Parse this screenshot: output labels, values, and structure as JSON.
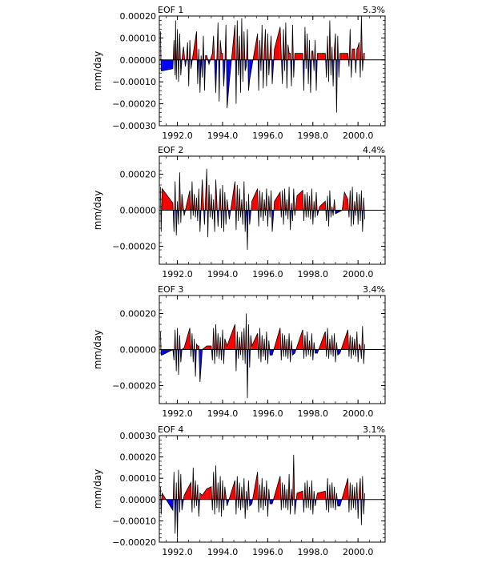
{
  "colors": {
    "positive": "#ff0000",
    "negative": "#0000ff",
    "axis": "#000000"
  },
  "chart_data": [
    {
      "type": "area",
      "title": "EOF 1",
      "variance_label": "5.3%",
      "ylabel": "mm/day",
      "xlim": [
        1991.2,
        2001.2
      ],
      "ylim": [
        -0.0003,
        0.0002
      ],
      "yticks": [
        -0.0003,
        -0.0002,
        -0.0001,
        0.0,
        0.0001,
        0.0002
      ],
      "ytick_labels": [
        "−0.00030",
        "−0.00020",
        "−0.00010",
        "0.00000",
        "0.00010",
        "0.00020"
      ],
      "xticks": [
        1992,
        1994,
        1996,
        1998,
        2000
      ],
      "xtick_labels": [
        "1992.0",
        "1994.0",
        "1996.0",
        "1998.0",
        "2000.0"
      ],
      "x": [
        1991.25,
        1991.28,
        1991.32,
        1991.8,
        1991.85,
        1991.9,
        1991.92,
        1991.95,
        1992.0,
        1992.05,
        1992.1,
        1992.15,
        1992.2,
        1992.27,
        1992.35,
        1992.4,
        1992.45,
        1992.5,
        1992.55,
        1992.6,
        1992.85,
        1992.9,
        1992.95,
        1993.0,
        1993.05,
        1993.1,
        1993.15,
        1993.2,
        1993.25,
        1993.3,
        1993.4,
        1993.55,
        1993.6,
        1993.7,
        1993.8,
        1993.85,
        1993.9,
        1993.95,
        1994.0,
        1994.05,
        1994.1,
        1994.15,
        1994.2,
        1994.3,
        1994.55,
        1994.6,
        1994.65,
        1994.7,
        1994.75,
        1994.8,
        1994.85,
        1994.9,
        1994.95,
        1995.0,
        1995.05,
        1995.1,
        1995.15,
        1995.2,
        1995.3,
        1995.55,
        1995.6,
        1995.65,
        1995.7,
        1995.75,
        1995.8,
        1995.85,
        1995.9,
        1995.95,
        1996.0,
        1996.05,
        1996.1,
        1996.15,
        1996.2,
        1996.3,
        1996.55,
        1996.6,
        1996.65,
        1996.7,
        1996.75,
        1996.8,
        1996.85,
        1996.9,
        1996.95,
        1997.0,
        1997.05,
        1997.1,
        1997.15,
        1997.2,
        1997.3,
        1997.55,
        1997.6,
        1997.65,
        1997.7,
        1997.75,
        1997.8,
        1997.85,
        1997.9,
        1997.95,
        1998.0,
        1998.05,
        1998.1,
        1998.15,
        1998.2,
        1998.3,
        1998.55,
        1998.6,
        1998.65,
        1998.7,
        1998.75,
        1998.8,
        1998.85,
        1998.9,
        1998.95,
        1999.0,
        1999.05,
        1999.1,
        1999.15,
        1999.2,
        1999.3,
        1999.55,
        1999.6,
        1999.65,
        1999.7,
        1999.75,
        1999.8,
        1999.85,
        1999.9,
        1999.95,
        2000.0,
        2000.05,
        2000.1,
        2000.15,
        2000.2,
        2000.25,
        2000.3
      ],
      "values": [
        0.00013,
        -5e-05,
        -5e-05,
        -4e-05,
        9e-05,
        -7e-05,
        0.00018,
        -9e-05,
        0.00014,
        -0.0001,
        0.00012,
        -7e-05,
        0.0,
        6e-05,
        -3e-05,
        0.0,
        8e-05,
        -0.00012,
        9e-05,
        -4e-05,
        0.00013,
        -0.00011,
        5e-05,
        -0.00015,
        2e-05,
        -8e-05,
        0.00011,
        -0.00014,
        2e-05,
        2e-05,
        -2e-05,
        3e-05,
        0.00011,
        -0.00015,
        0.00017,
        -0.00019,
        9e-05,
        3e-05,
        3e-05,
        -0.00012,
        -3e-05,
        0.00016,
        -0.00022,
        -0.0001,
        0.00016,
        -0.0002,
        0.00018,
        -7e-05,
        0.00011,
        -0.00015,
        0.00019,
        -0.0001,
        0.00013,
        -5e-05,
        -3e-05,
        0.00014,
        -0.00014,
        -9e-05,
        -3e-05,
        0.00012,
        -0.00014,
        9e-05,
        -5e-05,
        0.00016,
        -0.00013,
        4e-05,
        0.00014,
        -0.00012,
        0.00012,
        -7e-05,
        3e-05,
        0.00011,
        -0.00011,
        5e-05,
        0.00015,
        2e-05,
        -0.00011,
        0.00014,
        -5e-05,
        0.00017,
        -0.00013,
        7e-05,
        3e-05,
        3e-05,
        -0.00012,
        0.00016,
        -8e-05,
        3e-05,
        3e-05,
        3e-05,
        -0.00014,
        0.00015,
        -4e-05,
        0.00012,
        -0.00011,
        9e-05,
        -0.00015,
        4e-05,
        4e-05,
        -5e-05,
        9e-05,
        -0.00014,
        3e-05,
        3e-05,
        3e-05,
        -8e-05,
        0.00011,
        -0.0001,
        0.00018,
        -7e-05,
        6e-05,
        -0.00012,
        5e-05,
        0.00012,
        -0.00024,
        0.00011,
        -8e-05,
        3e-05,
        3e-05,
        3e-05,
        -3e-05,
        0.00014,
        -8e-05,
        5e-05,
        5e-05,
        5e-05,
        -6e-05,
        5e-05,
        6e-05,
        8e-05,
        -8e-05,
        0.0002,
        -5e-05,
        3e-05,
        3e-05
      ]
    },
    {
      "type": "area",
      "title": "EOF 2",
      "variance_label": "4.4%",
      "ylabel": "mm/day",
      "xlim": [
        1991.2,
        2001.2
      ],
      "ylim": [
        -0.0003,
        0.0003
      ],
      "yticks": [
        -0.0002,
        0.0,
        0.0002
      ],
      "ytick_labels": [
        "−0.00020",
        "0.00000",
        "0.00020"
      ],
      "xticks": [
        1992,
        1994,
        1996,
        1998,
        2000
      ],
      "xtick_labels": [
        "1992.0",
        "1994.0",
        "1996.0",
        "1998.0",
        "2000.0"
      ],
      "x": [
        1991.25,
        1991.28,
        1991.32,
        1991.8,
        1991.85,
        1991.9,
        1991.95,
        1992.0,
        1992.05,
        1992.1,
        1992.15,
        1992.2,
        1992.3,
        1992.55,
        1992.6,
        1992.65,
        1992.7,
        1992.75,
        1992.8,
        1992.85,
        1992.9,
        1992.95,
        1993.0,
        1993.1,
        1993.2,
        1993.3,
        1993.35,
        1993.4,
        1993.45,
        1993.5,
        1993.55,
        1993.6,
        1993.65,
        1993.7,
        1993.8,
        1993.9,
        1993.95,
        1994.0,
        1994.05,
        1994.1,
        1994.15,
        1994.2,
        1994.3,
        1994.55,
        1994.6,
        1994.65,
        1994.7,
        1994.75,
        1994.8,
        1994.85,
        1994.9,
        1994.95,
        1995.0,
        1995.05,
        1995.1,
        1995.15,
        1995.2,
        1995.3,
        1995.55,
        1995.6,
        1995.65,
        1995.7,
        1995.75,
        1995.8,
        1995.85,
        1995.9,
        1995.95,
        1996.0,
        1996.05,
        1996.1,
        1996.15,
        1996.2,
        1996.3,
        1996.55,
        1996.6,
        1996.65,
        1996.7,
        1996.75,
        1996.8,
        1996.85,
        1996.9,
        1996.95,
        1997.0,
        1997.05,
        1997.1,
        1997.15,
        1997.2,
        1997.3,
        1997.55,
        1997.6,
        1997.65,
        1997.7,
        1997.75,
        1997.8,
        1997.85,
        1997.9,
        1997.95,
        1998.0,
        1998.05,
        1998.1,
        1998.15,
        1998.2,
        1998.3,
        1998.55,
        1998.6,
        1998.65,
        1998.7,
        1998.75,
        1998.8,
        1998.85,
        1998.9,
        1998.95,
        1999.0,
        1999.3,
        1999.4,
        1999.55,
        1999.6,
        1999.65,
        1999.7,
        1999.75,
        1999.8,
        1999.85,
        1999.9,
        1999.95,
        2000.0,
        2000.05,
        2000.1,
        2000.15,
        2000.2,
        2000.25,
        2000.3
      ],
      "values": [
        0.00013,
        -0.00012,
        0.00012,
        4e-05,
        -0.00012,
        0.00016,
        -0.00014,
        5e-05,
        -8e-05,
        0.00021,
        -7e-05,
        9e-05,
        -3e-05,
        0.00011,
        -5e-05,
        0.00016,
        -3e-05,
        9e-05,
        -4e-05,
        7e-05,
        -6e-05,
        0.00012,
        -0.00012,
        0.00017,
        -8e-05,
        0.00023,
        -0.00015,
        0.00014,
        -4e-05,
        9e-05,
        -5e-05,
        6e-05,
        -0.00012,
        0.00017,
        -9e-05,
        0.00012,
        -0.0001,
        0.00014,
        -0.00012,
        0.0001,
        -8e-05,
        6e-05,
        -5e-05,
        0.00016,
        -0.00011,
        0.00014,
        -6e-05,
        0.00012,
        -4e-05,
        6e-05,
        -8e-05,
        0.00016,
        -0.00012,
        5e-05,
        -0.00022,
        9e-05,
        -8e-05,
        5e-05,
        0.00012,
        -9e-05,
        0.00011,
        -4e-05,
        0.0001,
        -6e-05,
        6e-05,
        -3e-05,
        0.00012,
        -9e-05,
        8e-05,
        -4e-05,
        0.00011,
        -0.00012,
        5e-05,
        0.0001,
        -4e-05,
        0.00011,
        -8e-05,
        0.00012,
        -3e-05,
        6e-05,
        -5e-05,
        0.00013,
        -0.00011,
        4e-05,
        -6e-05,
        0.00012,
        -3e-05,
        8e-05,
        0.00011,
        -6e-05,
        9e-05,
        -4e-05,
        0.0001,
        -4e-05,
        8e-05,
        -5e-05,
        0.00012,
        -8e-05,
        5e-05,
        -4e-05,
        0.0001,
        -3e-05,
        2e-05,
        5e-05,
        -6e-05,
        8e-05,
        -9e-05,
        0.00011,
        -4e-05,
        2e-05,
        -3e-05,
        6e-05,
        -2e-05,
        0.0,
        0.0001,
        6e-05,
        -4e-05,
        0.00011,
        -9e-05,
        0.00013,
        -8e-05,
        5e-05,
        -3e-05,
        0.0001,
        -8e-05,
        9e-05,
        -6e-05,
        0.00011,
        -0.00012,
        7e-05,
        -5e-05
      ]
    },
    {
      "type": "area",
      "title": "EOF 3",
      "variance_label": "3.4%",
      "ylabel": "mm/day",
      "xlim": [
        1991.2,
        2001.2
      ],
      "ylim": [
        -0.0003,
        0.0003
      ],
      "yticks": [
        -0.0002,
        0.0,
        0.0002
      ],
      "ytick_labels": [
        "−0.00020",
        "0.00000",
        "0.00020"
      ],
      "xticks": [
        1992,
        1994,
        1996,
        1998,
        2000
      ],
      "xtick_labels": [
        "1992.0",
        "1994.0",
        "1996.0",
        "1998.0",
        "2000.0"
      ],
      "x": [
        1991.25,
        1991.28,
        1991.32,
        1991.8,
        1991.85,
        1991.9,
        1991.95,
        1992.0,
        1992.05,
        1992.1,
        1992.15,
        1992.2,
        1992.3,
        1992.55,
        1992.6,
        1992.65,
        1992.7,
        1992.75,
        1992.8,
        1992.85,
        1992.9,
        1992.95,
        1993.0,
        1993.1,
        1993.3,
        1993.5,
        1993.55,
        1993.6,
        1993.65,
        1993.7,
        1993.75,
        1993.8,
        1993.85,
        1993.9,
        1993.95,
        1994.0,
        1994.05,
        1994.1,
        1994.2,
        1994.55,
        1994.6,
        1994.65,
        1994.7,
        1994.75,
        1994.8,
        1994.85,
        1994.9,
        1994.95,
        1995.0,
        1995.05,
        1995.1,
        1995.15,
        1995.2,
        1995.25,
        1995.3,
        1995.55,
        1995.6,
        1995.65,
        1995.7,
        1995.75,
        1995.8,
        1995.85,
        1995.9,
        1995.95,
        1996.0,
        1996.05,
        1996.1,
        1996.2,
        1996.55,
        1996.6,
        1996.65,
        1996.7,
        1996.75,
        1996.8,
        1996.85,
        1996.9,
        1996.95,
        1997.0,
        1997.05,
        1997.1,
        1997.2,
        1997.55,
        1997.6,
        1997.65,
        1997.7,
        1997.75,
        1997.8,
        1997.85,
        1997.9,
        1997.95,
        1998.0,
        1998.05,
        1998.1,
        1998.2,
        1998.55,
        1998.6,
        1998.65,
        1998.7,
        1998.75,
        1998.8,
        1998.85,
        1998.9,
        1998.95,
        1999.0,
        1999.05,
        1999.1,
        1999.2,
        1999.55,
        1999.6,
        1999.65,
        1999.7,
        1999.75,
        1999.8,
        1999.85,
        1999.9,
        1999.95,
        2000.0,
        2000.05,
        2000.1,
        2000.15,
        2000.2,
        2000.25,
        2000.3
      ],
      "values": [
        0.0001,
        -3e-05,
        -3e-05,
        0.0,
        -6e-05,
        0.00011,
        -0.00012,
        0.00012,
        -0.00014,
        8e-05,
        -7e-05,
        0.0,
        1e-05,
        0.00012,
        -4e-05,
        9e-05,
        -7e-05,
        6e-05,
        -0.00015,
        3e-05,
        2e-05,
        2e-05,
        -0.00018,
        0.0,
        2e-05,
        2e-05,
        -6e-05,
        0.00012,
        -8e-05,
        0.00014,
        -4e-05,
        9e-05,
        -5e-05,
        7e-05,
        -6e-05,
        0.00011,
        -8e-05,
        6e-05,
        2e-05,
        0.00014,
        -0.00012,
        0.0001,
        -5e-05,
        7e-05,
        -3e-05,
        0.0001,
        -6e-05,
        0.00012,
        -8e-05,
        0.0002,
        -0.00027,
        0.00014,
        -0.0001,
        8e-05,
        2e-05,
        9e-05,
        -5e-05,
        0.00012,
        -7e-05,
        8e-05,
        -4e-05,
        6e-05,
        -6e-05,
        0.0001,
        -8e-05,
        5e-05,
        -3e-05,
        -3e-05,
        0.00012,
        -6e-05,
        9e-05,
        -4e-05,
        8e-05,
        -4e-05,
        6e-05,
        -5e-05,
        9e-05,
        -7e-05,
        5e-05,
        -3e-05,
        -2e-05,
        0.00011,
        -5e-05,
        8e-05,
        -4e-05,
        0.0001,
        -3e-05,
        5e-05,
        -4e-05,
        9e-05,
        -6e-05,
        4e-05,
        -2e-05,
        -2e-05,
        0.0001,
        -4e-05,
        0.00012,
        -5e-05,
        6e-05,
        -3e-05,
        8e-05,
        -4e-05,
        9e-05,
        -7e-05,
        4e-05,
        -3e-05,
        -2e-05,
        0.00011,
        -4e-05,
        8e-05,
        -5e-05,
        7e-05,
        -3e-05,
        6e-05,
        -4e-05,
        0.0001,
        -7e-05,
        3e-05,
        2e-05,
        -5e-05,
        0.00013,
        -8e-05,
        3e-05
      ]
    },
    {
      "type": "area",
      "title": "EOF 4",
      "variance_label": "3.1%",
      "ylabel": "mm/day",
      "xlim": [
        1991.2,
        2001.2
      ],
      "ylim": [
        -0.0002,
        0.0003
      ],
      "yticks": [
        -0.0002,
        -0.0001,
        0.0,
        0.0001,
        0.0002,
        0.0003
      ],
      "ytick_labels": [
        "−0.00020",
        "−0.00010",
        "0.00000",
        "0.00010",
        "0.00020",
        "0.00030"
      ],
      "xticks": [
        1992,
        1994,
        1996,
        1998,
        2000
      ],
      "xtick_labels": [
        "1992.0",
        "1994.0",
        "1996.0",
        "1998.0",
        "2000.0"
      ],
      "x": [
        1991.25,
        1991.28,
        1991.32,
        1991.5,
        1991.8,
        1991.85,
        1991.9,
        1991.95,
        1992.0,
        1992.05,
        1992.1,
        1992.15,
        1992.2,
        1992.3,
        1992.6,
        1992.65,
        1992.7,
        1992.75,
        1992.8,
        1992.85,
        1992.9,
        1992.95,
        1993.0,
        1993.1,
        1993.3,
        1993.5,
        1993.55,
        1993.6,
        1993.65,
        1993.7,
        1993.75,
        1993.8,
        1993.85,
        1993.9,
        1993.95,
        1994.0,
        1994.05,
        1994.1,
        1994.2,
        1994.55,
        1994.6,
        1994.65,
        1994.7,
        1994.75,
        1994.8,
        1994.85,
        1994.9,
        1994.95,
        1995.0,
        1995.05,
        1995.1,
        1995.15,
        1995.2,
        1995.3,
        1995.55,
        1995.6,
        1995.65,
        1995.7,
        1995.75,
        1995.8,
        1995.85,
        1995.9,
        1995.95,
        1996.0,
        1996.05,
        1996.1,
        1996.2,
        1996.55,
        1996.6,
        1996.65,
        1996.7,
        1996.75,
        1996.8,
        1996.85,
        1996.9,
        1996.95,
        1997.0,
        1997.05,
        1997.1,
        1997.15,
        1997.2,
        1997.3,
        1997.55,
        1997.6,
        1997.65,
        1997.7,
        1997.75,
        1997.8,
        1997.85,
        1997.9,
        1997.95,
        1998.0,
        1998.05,
        1998.1,
        1998.2,
        1998.55,
        1998.6,
        1998.65,
        1998.7,
        1998.75,
        1998.8,
        1998.85,
        1998.9,
        1998.95,
        1999.0,
        1999.05,
        1999.1,
        1999.2,
        1999.55,
        1999.6,
        1999.65,
        1999.7,
        1999.75,
        1999.8,
        1999.85,
        1999.9,
        1999.95,
        2000.0,
        2000.05,
        2000.1,
        2000.15,
        2000.2,
        2000.25,
        2000.3
      ],
      "values": [
        6e-05,
        -7e-05,
        3e-05,
        0.0,
        -5e-05,
        0.00013,
        -0.00016,
        8e-05,
        -0.00018,
        0.00014,
        -6e-05,
        0.00012,
        -5e-05,
        2e-05,
        8e-05,
        -6e-05,
        0.00015,
        -4e-05,
        9e-05,
        -3e-05,
        7e-05,
        -8e-05,
        3e-05,
        2e-05,
        5e-05,
        6e-05,
        -5e-05,
        0.00013,
        -7e-05,
        0.00016,
        -4e-05,
        8e-05,
        -6e-05,
        0.00011,
        -8e-05,
        9e-05,
        -5e-05,
        6e-05,
        -3e-05,
        9e-05,
        -7e-05,
        0.00011,
        -4e-05,
        8e-05,
        -5e-05,
        6e-05,
        -4e-05,
        0.0001,
        -9e-05,
        4e-05,
        -5e-05,
        9e-05,
        -3e-05,
        -2e-05,
        0.00013,
        -6e-05,
        7e-05,
        -4e-05,
        0.0001,
        -5e-05,
        6e-05,
        -3e-05,
        9e-05,
        -8e-05,
        5e-05,
        -2e-05,
        -2e-05,
        0.00011,
        -5e-05,
        8e-05,
        -4e-05,
        7e-05,
        -4e-05,
        5e-05,
        -5e-05,
        0.00012,
        -7e-05,
        5e-05,
        -3e-05,
        0.00021,
        -7e-05,
        3e-05,
        4e-05,
        -6e-05,
        8e-05,
        -4e-05,
        9e-05,
        -4e-05,
        6e-05,
        -5e-05,
        9e-05,
        -7e-05,
        4e-05,
        -3e-05,
        3e-05,
        4e-05,
        -5e-05,
        0.0001,
        -6e-05,
        7e-05,
        -4e-05,
        8e-05,
        -4e-05,
        6e-05,
        -5e-05,
        3e-05,
        -3e-05,
        -3e-05,
        0.0001,
        -6e-05,
        8e-05,
        -5e-05,
        7e-05,
        -4e-05,
        6e-05,
        -5e-05,
        8e-05,
        -9e-05,
        4e-05,
        0.0001,
        -0.00012,
        0.00011,
        -7e-05,
        3e-05
      ]
    }
  ]
}
